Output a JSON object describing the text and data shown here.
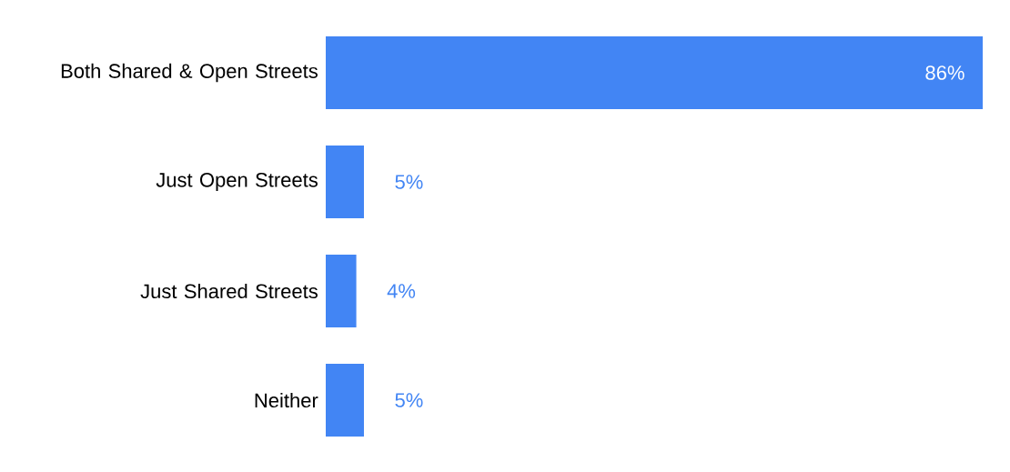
{
  "chart_data": {
    "type": "bar",
    "orientation": "horizontal",
    "categories": [
      "Both Shared & Open Streets",
      "Just Open Streets",
      "Just Shared Streets",
      "Neither"
    ],
    "values": [
      86,
      5,
      4,
      5
    ],
    "value_labels": [
      "86%",
      "5%",
      "4%",
      "5%"
    ],
    "color": "#4285f4"
  }
}
